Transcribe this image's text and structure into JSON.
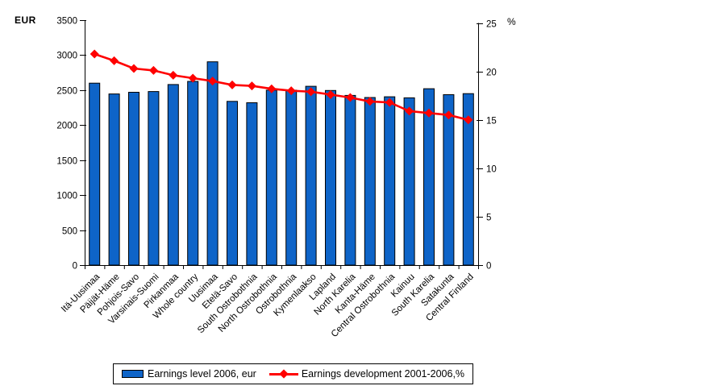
{
  "chart_data": {
    "type": "bar",
    "combo": "bar+line dual axis",
    "title": "",
    "categories": [
      "Itä-Uusimaa",
      "Päijät-Häme",
      "Pohjois-Savo",
      "Varsinais-Suomi",
      "Pirkanmaa",
      "Whole country",
      "Uusimaa",
      "Etelä-Savo",
      "South Ostrobothnia",
      "North Ostrobothnia",
      "Ostrobothnia",
      "Kymenlaakso",
      "Lapland",
      "North Karelia",
      "Kanta-Häme",
      "Central Ostrobothnia",
      "Kainuu",
      "South Karelia",
      "Satakunta",
      "Central Finland"
    ],
    "series": [
      {
        "name": "Earnings level 2006, eur",
        "type": "bar",
        "axis": "left",
        "color": "#0E64C8",
        "border_color": "#000000",
        "values": [
          2600,
          2445,
          2470,
          2480,
          2580,
          2625,
          2905,
          2340,
          2320,
          2500,
          2500,
          2555,
          2495,
          2425,
          2395,
          2405,
          2390,
          2520,
          2435,
          2450
        ]
      },
      {
        "name": "Earnings development 2001-2006,%",
        "type": "line",
        "axis": "right",
        "color": "#FF0000",
        "marker": "diamond",
        "values": [
          21.8,
          21.1,
          20.3,
          20.1,
          19.6,
          19.3,
          19.0,
          18.6,
          18.5,
          18.2,
          18.0,
          17.9,
          17.6,
          17.3,
          16.9,
          16.8,
          15.9,
          15.7,
          15.5,
          15.0
        ]
      }
    ],
    "left_axis": {
      "label": "EUR",
      "min": 0,
      "max": 3500,
      "tick_step": 500,
      "ticks": [
        "0",
        "500",
        "1000",
        "1500",
        "2000",
        "2500",
        "3000",
        "3500"
      ]
    },
    "right_axis": {
      "label": "%",
      "min": 0,
      "max": 25,
      "tick_step": 5,
      "ticks": [
        "0",
        "5",
        "10",
        "15",
        "20",
        "25"
      ]
    },
    "xlabel": "",
    "ylabel": "EUR",
    "y2label": "%",
    "grid": false,
    "legend_position": "bottom"
  }
}
